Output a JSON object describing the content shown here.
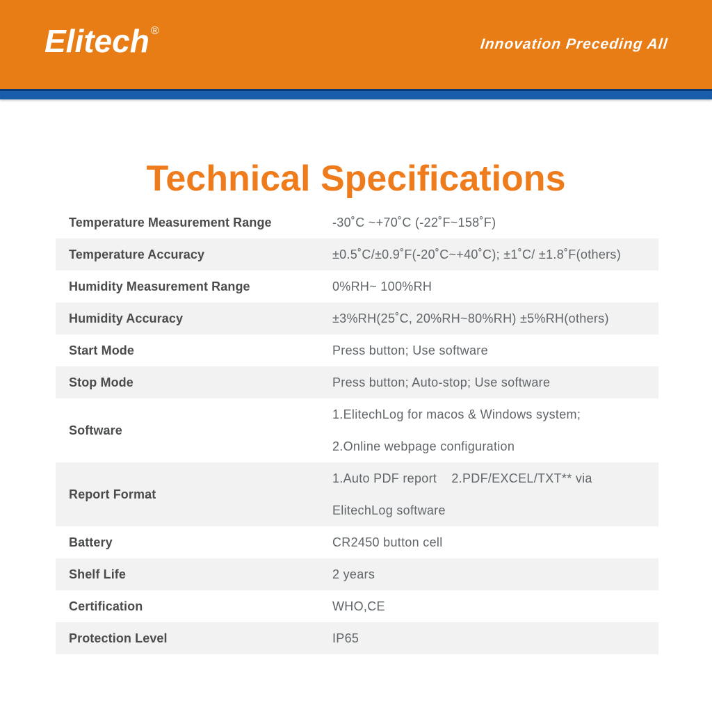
{
  "header": {
    "logo": "Elitech",
    "registered_mark": "®",
    "slogan": "Innovation Preceding All"
  },
  "title": "Technical Specifications",
  "colors": {
    "header_orange": "#e87c15",
    "title_orange": "#ee7c1d",
    "divider_blue": "#1a5dab",
    "divider_dark_blue": "#0a3a78",
    "row_alt_gray": "#f2f2f2",
    "label_text": "#4a4c4b",
    "value_text": "#5f6568"
  },
  "table": {
    "rows": [
      {
        "label": "Temperature Measurement Range",
        "value_lines": [
          "-30˚C ~+70˚C (-22˚F~158˚F)"
        ]
      },
      {
        "label": "Temperature Accuracy",
        "value_lines": [
          "±0.5˚C/±0.9˚F(-20˚C~+40˚C); ±1˚C/ ±1.8˚F(others)"
        ]
      },
      {
        "label": "Humidity Measurement Range",
        "value_lines": [
          "0%RH~ 100%RH"
        ]
      },
      {
        "label": "Humidity Accuracy",
        "value_lines": [
          "±3%RH(25˚C, 20%RH~80%RH) ±5%RH(others)"
        ]
      },
      {
        "label": "Start Mode",
        "value_lines": [
          "Press button; Use software"
        ]
      },
      {
        "label": "Stop Mode",
        "value_lines": [
          "Press button; Auto-stop; Use software"
        ]
      },
      {
        "label": "Software",
        "value_lines": [
          "1.ElitechLog for macos & Windows system;",
          "2.Online webpage configuration"
        ]
      },
      {
        "label": "Report Format",
        "value_lines": [
          "1.Auto PDF report    2.PDF/EXCEL/TXT** via",
          "ElitechLog software"
        ]
      },
      {
        "label": "Battery",
        "value_lines": [
          "CR2450 button cell"
        ]
      },
      {
        "label": "Shelf Life",
        "value_lines": [
          "2 years"
        ]
      },
      {
        "label": "Certification",
        "value_lines": [
          "WHO,CE"
        ]
      },
      {
        "label": "Protection Level",
        "value_lines": [
          "IP65"
        ]
      }
    ]
  }
}
